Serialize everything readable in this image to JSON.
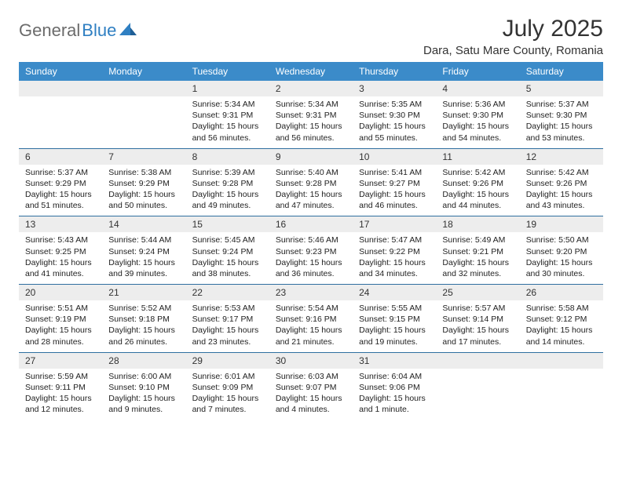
{
  "brand": {
    "part1": "General",
    "part2": "Blue"
  },
  "title": "July 2025",
  "location": "Dara, Satu Mare County, Romania",
  "colors": {
    "header_bg": "#3b8bc9",
    "header_text": "#ffffff",
    "daynum_bg": "#ededed",
    "rule": "#2f6fa0",
    "brand_gray": "#6b6b6b",
    "brand_blue": "#2f7fc2"
  },
  "weekdays": [
    "Sunday",
    "Monday",
    "Tuesday",
    "Wednesday",
    "Thursday",
    "Friday",
    "Saturday"
  ],
  "weeks": [
    [
      null,
      null,
      {
        "n": "1",
        "sr": "5:34 AM",
        "ss": "9:31 PM",
        "dl": "15 hours and 56 minutes."
      },
      {
        "n": "2",
        "sr": "5:34 AM",
        "ss": "9:31 PM",
        "dl": "15 hours and 56 minutes."
      },
      {
        "n": "3",
        "sr": "5:35 AM",
        "ss": "9:30 PM",
        "dl": "15 hours and 55 minutes."
      },
      {
        "n": "4",
        "sr": "5:36 AM",
        "ss": "9:30 PM",
        "dl": "15 hours and 54 minutes."
      },
      {
        "n": "5",
        "sr": "5:37 AM",
        "ss": "9:30 PM",
        "dl": "15 hours and 53 minutes."
      }
    ],
    [
      {
        "n": "6",
        "sr": "5:37 AM",
        "ss": "9:29 PM",
        "dl": "15 hours and 51 minutes."
      },
      {
        "n": "7",
        "sr": "5:38 AM",
        "ss": "9:29 PM",
        "dl": "15 hours and 50 minutes."
      },
      {
        "n": "8",
        "sr": "5:39 AM",
        "ss": "9:28 PM",
        "dl": "15 hours and 49 minutes."
      },
      {
        "n": "9",
        "sr": "5:40 AM",
        "ss": "9:28 PM",
        "dl": "15 hours and 47 minutes."
      },
      {
        "n": "10",
        "sr": "5:41 AM",
        "ss": "9:27 PM",
        "dl": "15 hours and 46 minutes."
      },
      {
        "n": "11",
        "sr": "5:42 AM",
        "ss": "9:26 PM",
        "dl": "15 hours and 44 minutes."
      },
      {
        "n": "12",
        "sr": "5:42 AM",
        "ss": "9:26 PM",
        "dl": "15 hours and 43 minutes."
      }
    ],
    [
      {
        "n": "13",
        "sr": "5:43 AM",
        "ss": "9:25 PM",
        "dl": "15 hours and 41 minutes."
      },
      {
        "n": "14",
        "sr": "5:44 AM",
        "ss": "9:24 PM",
        "dl": "15 hours and 39 minutes."
      },
      {
        "n": "15",
        "sr": "5:45 AM",
        "ss": "9:24 PM",
        "dl": "15 hours and 38 minutes."
      },
      {
        "n": "16",
        "sr": "5:46 AM",
        "ss": "9:23 PM",
        "dl": "15 hours and 36 minutes."
      },
      {
        "n": "17",
        "sr": "5:47 AM",
        "ss": "9:22 PM",
        "dl": "15 hours and 34 minutes."
      },
      {
        "n": "18",
        "sr": "5:49 AM",
        "ss": "9:21 PM",
        "dl": "15 hours and 32 minutes."
      },
      {
        "n": "19",
        "sr": "5:50 AM",
        "ss": "9:20 PM",
        "dl": "15 hours and 30 minutes."
      }
    ],
    [
      {
        "n": "20",
        "sr": "5:51 AM",
        "ss": "9:19 PM",
        "dl": "15 hours and 28 minutes."
      },
      {
        "n": "21",
        "sr": "5:52 AM",
        "ss": "9:18 PM",
        "dl": "15 hours and 26 minutes."
      },
      {
        "n": "22",
        "sr": "5:53 AM",
        "ss": "9:17 PM",
        "dl": "15 hours and 23 minutes."
      },
      {
        "n": "23",
        "sr": "5:54 AM",
        "ss": "9:16 PM",
        "dl": "15 hours and 21 minutes."
      },
      {
        "n": "24",
        "sr": "5:55 AM",
        "ss": "9:15 PM",
        "dl": "15 hours and 19 minutes."
      },
      {
        "n": "25",
        "sr": "5:57 AM",
        "ss": "9:14 PM",
        "dl": "15 hours and 17 minutes."
      },
      {
        "n": "26",
        "sr": "5:58 AM",
        "ss": "9:12 PM",
        "dl": "15 hours and 14 minutes."
      }
    ],
    [
      {
        "n": "27",
        "sr": "5:59 AM",
        "ss": "9:11 PM",
        "dl": "15 hours and 12 minutes."
      },
      {
        "n": "28",
        "sr": "6:00 AM",
        "ss": "9:10 PM",
        "dl": "15 hours and 9 minutes."
      },
      {
        "n": "29",
        "sr": "6:01 AM",
        "ss": "9:09 PM",
        "dl": "15 hours and 7 minutes."
      },
      {
        "n": "30",
        "sr": "6:03 AM",
        "ss": "9:07 PM",
        "dl": "15 hours and 4 minutes."
      },
      {
        "n": "31",
        "sr": "6:04 AM",
        "ss": "9:06 PM",
        "dl": "15 hours and 1 minute."
      },
      null,
      null
    ]
  ],
  "labels": {
    "sunrise": "Sunrise: ",
    "sunset": "Sunset: ",
    "daylight": "Daylight: "
  }
}
